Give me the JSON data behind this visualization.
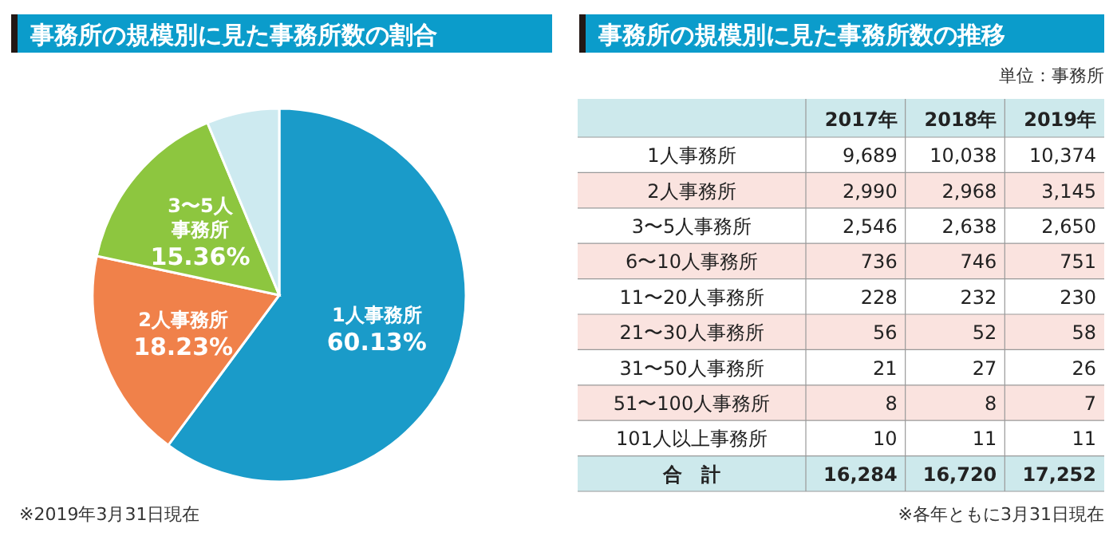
{
  "chart_data": [
    {
      "type": "pie",
      "title": "事務所の規模別に見た事務所数の割合",
      "categories": [
        "1人事務所",
        "2人事務所",
        "3〜5人事務所",
        null
      ],
      "values": [
        60.13,
        18.23,
        15.36,
        6.28
      ],
      "colors": [
        "#1a9bc9",
        "#f0814a",
        "#8dc63f",
        "#cdeaf0"
      ],
      "value_labels": [
        "60.13%",
        "18.23%",
        "15.36%",
        null
      ],
      "annotations": [
        "※2019年3月31日現在"
      ]
    },
    {
      "type": "heatmap",
      "title": "事務所の規模別に見た事務所数の推移",
      "categories": [
        "2017年",
        "2018年",
        "2019年"
      ],
      "y_categories": [
        "1人事務所",
        "2人事務所",
        "3〜5人事務所",
        "6〜10人事務所",
        "11〜20人事務所",
        "21〜30人事務所",
        "31〜50人事務所",
        "51〜100人事務所",
        "101人以上事務所",
        "合　計"
      ],
      "cells": [
        [
          9689,
          10038,
          10374
        ],
        [
          2990,
          2968,
          3145
        ],
        [
          2546,
          2638,
          2650
        ],
        [
          736,
          746,
          751
        ],
        [
          228,
          232,
          230
        ],
        [
          56,
          52,
          58
        ],
        [
          21,
          27,
          26
        ],
        [
          8,
          8,
          7
        ],
        [
          10,
          11,
          11
        ],
        [
          16284,
          16720,
          17252
        ]
      ],
      "cell_labels": [
        [
          "9,689",
          "10,038",
          "10,374"
        ],
        [
          "2,990",
          "2,968",
          "3,145"
        ],
        [
          "2,546",
          "2,638",
          "2,650"
        ],
        [
          "736",
          "746",
          "751"
        ],
        [
          "228",
          "232",
          "230"
        ],
        [
          "56",
          "52",
          "58"
        ],
        [
          "21",
          "27",
          "26"
        ],
        [
          "8",
          "8",
          "7"
        ],
        [
          "10",
          "11",
          "11"
        ],
        [
          "16,284",
          "16,720",
          "17,252"
        ]
      ],
      "annotations": [
        "単位：事務所",
        "※各年ともに3月31日現在"
      ]
    }
  ]
}
